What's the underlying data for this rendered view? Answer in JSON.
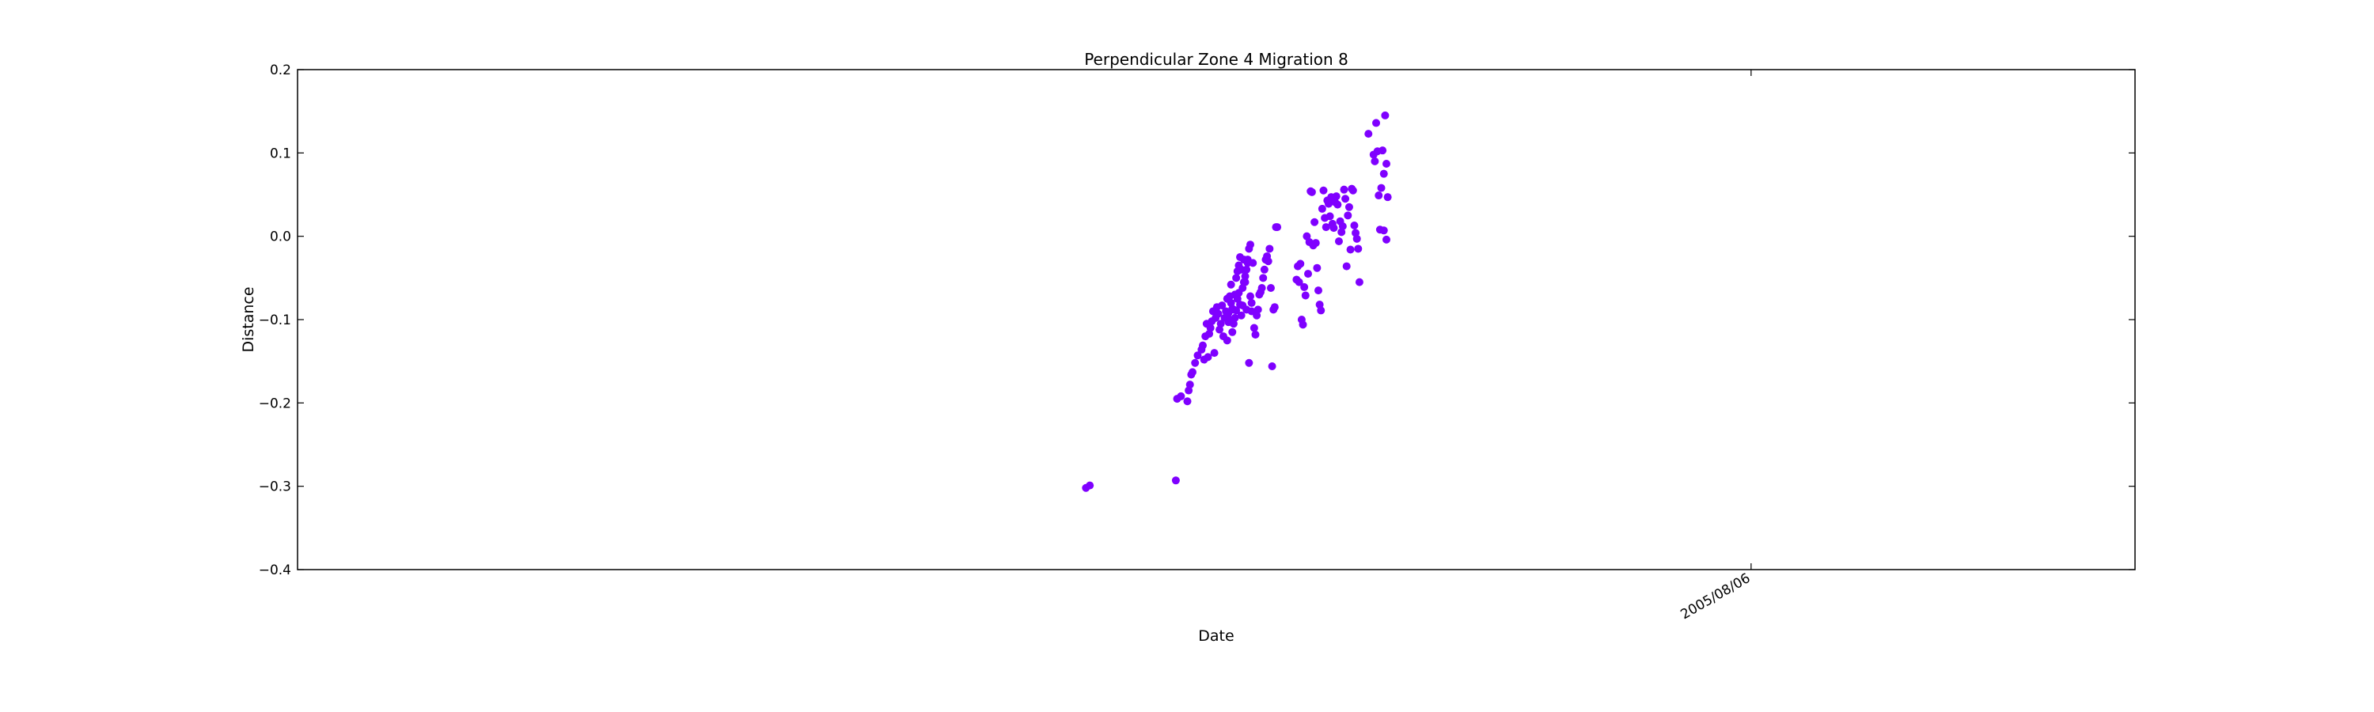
{
  "chart_data": {
    "type": "scatter",
    "title": "Perpendicular Zone 4 Migration 8",
    "xlabel": "Date",
    "ylabel": "Distance",
    "ylim": [
      -0.4,
      0.2
    ],
    "yticks": [
      -0.4,
      -0.3,
      -0.2,
      -0.1,
      0.0,
      0.1,
      0.2
    ],
    "ytick_labels": [
      "−0.4",
      "−0.3",
      "−0.2",
      "−0.1",
      "0.0",
      "0.1",
      "0.2"
    ],
    "xticks": [
      "2005/08/06"
    ],
    "grid": false,
    "series": [
      {
        "color": "#7f00ff",
        "x": [
          "2004/03/06",
          "2004/03/09",
          "2004/05/15",
          "2004/05/16",
          "2004/05/19",
          "2004/05/24",
          "2004/05/25",
          "2004/05/26",
          "2004/05/27",
          "2004/05/28",
          "2004/05/30",
          "2004/06/01",
          "2004/06/04",
          "2004/06/05",
          "2004/06/06",
          "2004/06/07",
          "2004/06/08",
          "2004/06/09",
          "2004/06/10",
          "2004/06/11",
          "2004/06/12",
          "2004/06/13",
          "2004/06/14",
          "2004/06/15",
          "2004/06/16",
          "2004/06/17",
          "2004/06/18",
          "2004/06/19",
          "2004/06/20",
          "2004/06/21",
          "2004/06/22",
          "2004/06/23",
          "2004/06/24",
          "2004/06/25",
          "2004/06/26",
          "2004/06/27",
          "2004/06/28",
          "2004/06/29",
          "2004/06/30",
          "2004/07/01",
          "2004/07/02",
          "2004/07/03",
          "2004/07/04",
          "2004/07/05",
          "2004/07/06",
          "2004/07/07",
          "2004/07/08",
          "2004/07/09",
          "2004/07/10",
          "2004/07/11",
          "2004/07/12",
          "2004/07/13",
          "2004/07/14",
          "2004/07/15",
          "2004/07/16",
          "2004/07/17",
          "2004/07/18",
          "2004/07/19",
          "2004/07/20",
          "2004/07/21",
          "2004/07/22",
          "2004/07/23",
          "2004/07/24",
          "2004/07/25",
          "2004/07/26",
          "2004/07/27",
          "2004/07/28",
          "2004/07/29",
          "2004/07/30",
          "2004/07/31",
          "2004/08/01",
          "2004/08/02",
          "2004/06/24",
          "2004/06/25",
          "2004/06/26",
          "2004/06/27",
          "2004/06/28",
          "2004/06/29",
          "2004/06/30",
          "2004/07/01",
          "2004/07/02",
          "2004/07/03",
          "2004/07/04",
          "2004/07/05",
          "2004/07/06",
          "2004/07/07",
          "2004/07/08",
          "2004/07/09",
          "2004/07/10",
          "2004/07/11",
          "2004/07/12",
          "2004/07/13",
          "2004/08/17",
          "2004/08/18",
          "2004/08/19",
          "2004/08/20",
          "2004/08/21",
          "2004/08/22",
          "2004/08/23",
          "2004/08/24",
          "2004/08/25",
          "2004/08/26",
          "2004/08/27",
          "2004/08/28",
          "2004/08/29",
          "2004/08/30",
          "2004/08/31",
          "2004/09/01",
          "2004/09/02",
          "2004/09/03",
          "2004/09/04",
          "2004/09/05",
          "2004/09/06",
          "2004/09/07",
          "2004/09/08",
          "2004/09/09",
          "2004/09/10",
          "2004/09/11",
          "2004/09/12",
          "2004/09/13",
          "2004/09/14",
          "2004/09/15",
          "2004/09/16",
          "2004/09/17",
          "2004/09/18",
          "2004/09/19",
          "2004/09/20",
          "2004/09/21",
          "2004/09/22",
          "2004/09/23",
          "2004/09/24",
          "2004/09/25",
          "2004/09/26",
          "2004/09/27",
          "2004/09/28",
          "2004/09/29",
          "2004/09/30",
          "2004/10/01",
          "2004/10/02",
          "2004/10/03",
          "2004/10/04",
          "2004/10/05",
          "2004/10/12",
          "2004/10/16",
          "2004/10/17",
          "2004/10/18",
          "2004/10/19",
          "2004/10/20",
          "2004/10/21",
          "2004/10/22",
          "2004/10/23",
          "2004/10/24"
        ],
        "y": [
          -0.302,
          -0.299,
          -0.293,
          -0.195,
          -0.192,
          -0.198,
          -0.185,
          -0.178,
          -0.166,
          -0.163,
          -0.152,
          -0.143,
          -0.136,
          -0.131,
          -0.148,
          -0.12,
          -0.105,
          -0.145,
          -0.117,
          -0.11,
          -0.102,
          -0.09,
          -0.14,
          -0.098,
          -0.085,
          -0.093,
          -0.112,
          -0.105,
          -0.083,
          -0.12,
          -0.098,
          -0.09,
          -0.075,
          -0.103,
          -0.072,
          -0.058,
          -0.115,
          -0.088,
          -0.07,
          -0.05,
          -0.042,
          -0.035,
          -0.025,
          -0.04,
          -0.083,
          -0.028,
          -0.055,
          -0.088,
          -0.032,
          -0.015,
          -0.01,
          -0.09,
          -0.032,
          -0.11,
          -0.118,
          -0.095,
          -0.088,
          -0.07,
          -0.067,
          -0.062,
          -0.05,
          -0.04,
          -0.028,
          -0.024,
          -0.03,
          -0.015,
          -0.062,
          -0.156,
          -0.088,
          -0.085,
          0.011,
          0.011,
          -0.125,
          -0.092,
          -0.1,
          -0.08,
          -0.087,
          -0.105,
          -0.098,
          -0.089,
          -0.075,
          -0.068,
          -0.082,
          -0.095,
          -0.062,
          -0.055,
          -0.048,
          -0.04,
          -0.028,
          -0.152,
          -0.072,
          -0.08,
          -0.052,
          -0.036,
          -0.055,
          -0.033,
          -0.1,
          -0.106,
          -0.061,
          -0.071,
          0.0,
          -0.045,
          -0.007,
          0.054,
          0.053,
          -0.011,
          0.017,
          -0.008,
          -0.038,
          -0.065,
          -0.082,
          -0.089,
          0.033,
          0.055,
          0.022,
          0.011,
          0.043,
          0.039,
          0.024,
          0.047,
          0.015,
          0.01,
          0.041,
          0.048,
          0.038,
          -0.006,
          0.018,
          0.005,
          0.012,
          0.056,
          0.045,
          -0.036,
          0.025,
          0.035,
          -0.016,
          0.057,
          0.055,
          0.013,
          0.004,
          -0.003,
          -0.015,
          -0.055,
          0.123,
          0.098,
          0.09,
          0.136,
          0.102,
          0.049,
          0.008,
          0.058,
          0.103,
          0.075
        ]
      },
      {
        "color": "#7f00ff",
        "x": [
          "2004/10/25",
          "2004/10/26",
          "2004/10/27",
          "2004/10/24",
          "2004/10/26"
        ],
        "y": [
          0.145,
          0.087,
          0.047,
          0.007,
          -0.004
        ]
      }
    ]
  }
}
